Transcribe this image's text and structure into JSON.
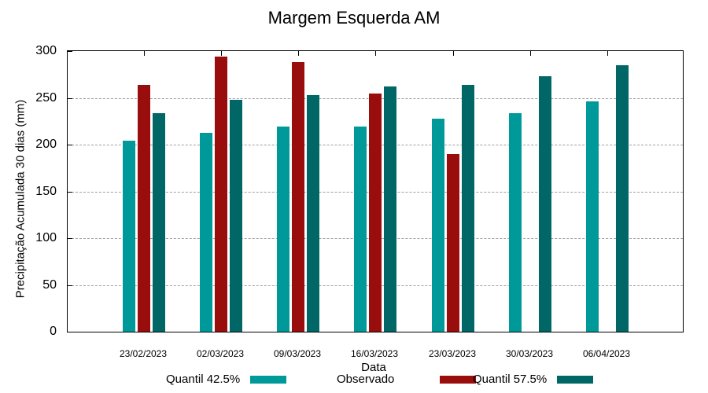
{
  "chart_data": {
    "type": "bar",
    "title": "Margem Esquerda AM",
    "xlabel": "Data",
    "ylabel": "Precipitação Acumulada 30 dias (mm)",
    "ylim": [
      0,
      300
    ],
    "yticks": [
      0,
      50,
      100,
      150,
      200,
      250,
      300
    ],
    "grid": true,
    "legend_position": "bottom",
    "categories": [
      "23/02/2023",
      "02/03/2023",
      "09/03/2023",
      "16/03/2023",
      "23/03/2023",
      "30/03/2023",
      "06/04/2023"
    ],
    "series": [
      {
        "name": "Quantil 42.5%",
        "color": "#009999",
        "values": [
          204,
          213,
          219,
          219,
          228,
          234,
          246
        ]
      },
      {
        "name": "Observado",
        "color": "#990d0d",
        "values": [
          264,
          294,
          288,
          255,
          190,
          null,
          null
        ]
      },
      {
        "name": "Quantil 57.5%",
        "color": "#006666",
        "values": [
          234,
          248,
          253,
          262,
          264,
          273,
          285
        ]
      }
    ]
  }
}
